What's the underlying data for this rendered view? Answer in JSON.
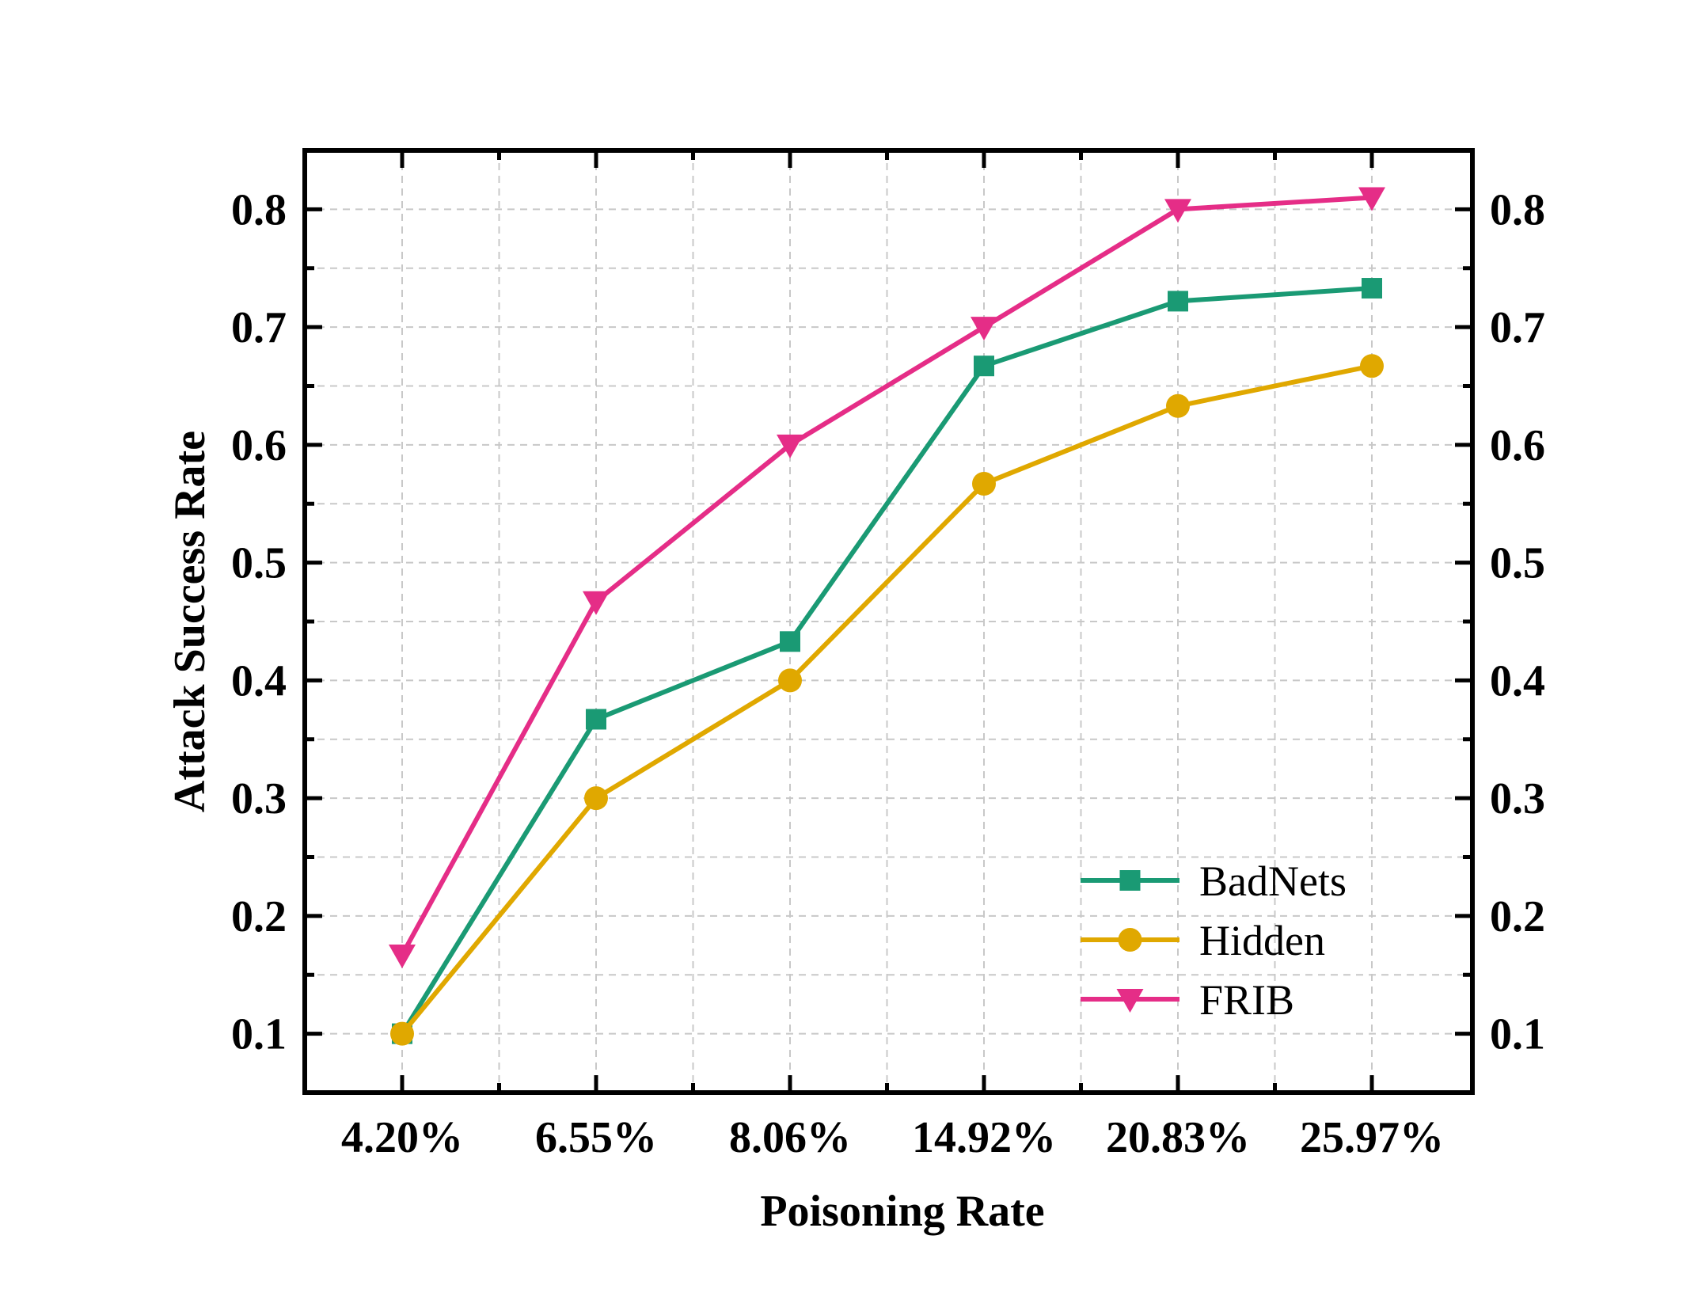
{
  "chart_data": {
    "type": "line",
    "title": "",
    "xlabel": "Poisoning Rate",
    "ylabel": "Attack Success Rate",
    "categories": [
      "4.20%",
      "6.55%",
      "8.06%",
      "14.92%",
      "20.83%",
      "25.97%"
    ],
    "ylim": [
      0.05,
      0.85
    ],
    "yticks": [
      "0.1",
      "0.2",
      "0.3",
      "0.4",
      "0.5",
      "0.6",
      "0.7",
      "0.8"
    ],
    "grid": true,
    "right_axis_mirrors_left": true,
    "legend_position": "bottom-right",
    "series": [
      {
        "name": "BadNets",
        "marker": "square",
        "color": "#1a9a74",
        "values": [
          0.1,
          0.367,
          0.433,
          0.667,
          0.722,
          0.733
        ]
      },
      {
        "name": "Hidden",
        "marker": "circle",
        "color": "#e0a800",
        "values": [
          0.1,
          0.3,
          0.4,
          0.567,
          0.633,
          0.667
        ]
      },
      {
        "name": "FRIB",
        "marker": "triangle-down",
        "color": "#e52d87",
        "values": [
          0.167,
          0.467,
          0.6,
          0.7,
          0.8,
          0.81
        ]
      }
    ]
  }
}
